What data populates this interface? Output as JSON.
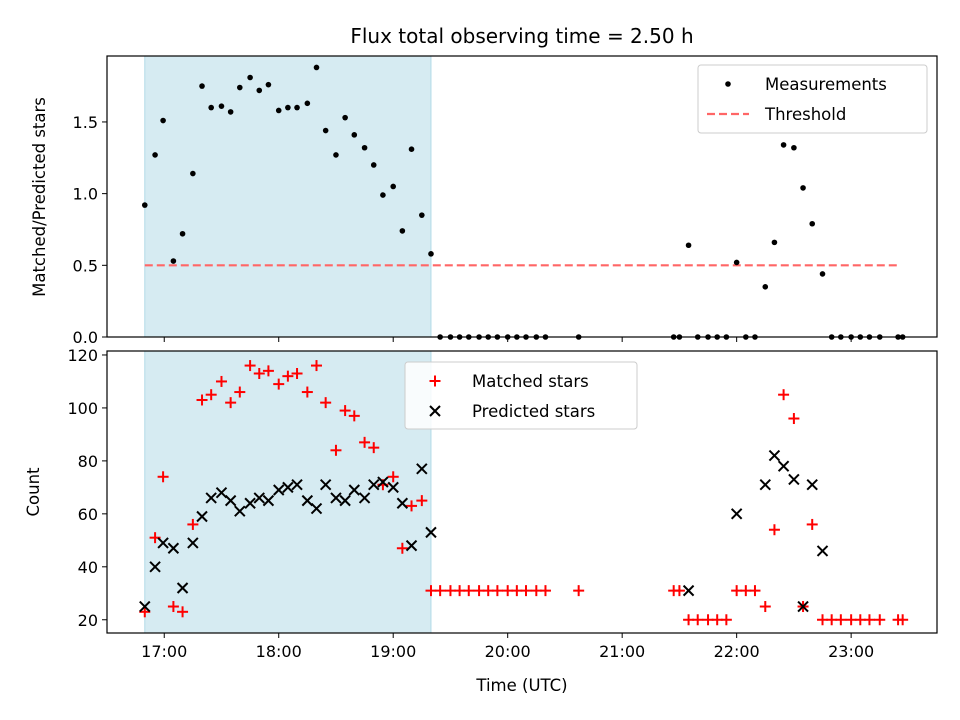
{
  "figure": {
    "title": "Flux total observing time = 2.50 h"
  },
  "chart_data": [
    {
      "type": "scatter",
      "panel": "top",
      "title": "Flux total observing time = 2.50 h",
      "xlabel": "",
      "ylabel": "Matched/Predicted stars",
      "xlim": [
        16.5,
        23.75
      ],
      "ylim": [
        0,
        1.96
      ],
      "yticks": [
        0,
        0.5,
        1.0,
        1.5
      ],
      "ytick_labels": [
        "0.0",
        "0.5",
        "1.0",
        "1.5"
      ],
      "shaded_interval": {
        "x": [
          16.83,
          19.33
        ],
        "color": "#add8e6",
        "alpha": 0.5
      },
      "series": [
        {
          "name": "Measurements",
          "marker": "dot",
          "color": "#000000",
          "points": [
            [
              16.83,
              0.92
            ],
            [
              16.92,
              1.27
            ],
            [
              16.99,
              1.51
            ],
            [
              17.08,
              0.53
            ],
            [
              17.16,
              0.72
            ],
            [
              17.25,
              1.14
            ],
            [
              17.33,
              1.75
            ],
            [
              17.41,
              1.6
            ],
            [
              17.5,
              1.61
            ],
            [
              17.58,
              1.57
            ],
            [
              17.66,
              1.74
            ],
            [
              17.75,
              1.81
            ],
            [
              17.83,
              1.72
            ],
            [
              17.91,
              1.76
            ],
            [
              18.0,
              1.58
            ],
            [
              18.08,
              1.6
            ],
            [
              18.16,
              1.6
            ],
            [
              18.25,
              1.63
            ],
            [
              18.33,
              1.88
            ],
            [
              18.41,
              1.44
            ],
            [
              18.5,
              1.27
            ],
            [
              18.58,
              1.53
            ],
            [
              18.66,
              1.41
            ],
            [
              18.75,
              1.32
            ],
            [
              18.83,
              1.2
            ],
            [
              18.91,
              0.99
            ],
            [
              19.0,
              1.05
            ],
            [
              19.08,
              0.74
            ],
            [
              19.16,
              1.31
            ],
            [
              19.25,
              0.85
            ],
            [
              19.33,
              0.58
            ],
            [
              19.41,
              0
            ],
            [
              19.5,
              0
            ],
            [
              19.58,
              0
            ],
            [
              19.66,
              0
            ],
            [
              19.75,
              0
            ],
            [
              19.83,
              0
            ],
            [
              19.91,
              0
            ],
            [
              20.0,
              0
            ],
            [
              20.08,
              0
            ],
            [
              20.16,
              0
            ],
            [
              20.25,
              0
            ],
            [
              20.33,
              0
            ],
            [
              20.62,
              0
            ],
            [
              21.45,
              0
            ],
            [
              21.5,
              0
            ],
            [
              21.58,
              0.64
            ],
            [
              21.66,
              0
            ],
            [
              21.75,
              0
            ],
            [
              21.83,
              0
            ],
            [
              21.91,
              0
            ],
            [
              22.0,
              0.52
            ],
            [
              22.08,
              0
            ],
            [
              22.16,
              0
            ],
            [
              22.25,
              0.35
            ],
            [
              22.33,
              0.66
            ],
            [
              22.41,
              1.34
            ],
            [
              22.5,
              1.32
            ],
            [
              22.58,
              1.04
            ],
            [
              22.66,
              0.79
            ],
            [
              22.75,
              0.44
            ],
            [
              22.83,
              0
            ],
            [
              22.91,
              0
            ],
            [
              23.0,
              0
            ],
            [
              23.08,
              0
            ],
            [
              23.16,
              0
            ],
            [
              23.25,
              0
            ],
            [
              23.41,
              0
            ],
            [
              23.45,
              0
            ]
          ]
        },
        {
          "name": "Threshold",
          "style": "dashed-line",
          "color": "#ff6666",
          "points": [
            [
              16.83,
              0.5
            ],
            [
              23.41,
              0.5
            ]
          ]
        }
      ],
      "legend": {
        "position": "top-right",
        "entries": [
          "Measurements",
          "Threshold"
        ]
      }
    },
    {
      "type": "scatter",
      "panel": "bottom",
      "xlabel": "Time (UTC)",
      "ylabel": "Count",
      "xlim": [
        16.5,
        23.75
      ],
      "ylim": [
        15,
        121.5
      ],
      "yticks": [
        20,
        40,
        60,
        80,
        100,
        120
      ],
      "ytick_labels": [
        "20",
        "40",
        "60",
        "80",
        "100",
        "120"
      ],
      "xticks": [
        17,
        18,
        19,
        20,
        21,
        22,
        23
      ],
      "xtick_labels": [
        "17:00",
        "18:00",
        "19:00",
        "20:00",
        "21:00",
        "22:00",
        "23:00"
      ],
      "shaded_interval": {
        "x": [
          16.83,
          19.33
        ],
        "color": "#add8e6",
        "alpha": 0.5
      },
      "series": [
        {
          "name": "Matched stars",
          "marker": "plus",
          "color": "#ff0000",
          "points": [
            [
              16.83,
              23
            ],
            [
              16.92,
              51
            ],
            [
              16.99,
              74
            ],
            [
              17.08,
              25
            ],
            [
              17.16,
              23
            ],
            [
              17.25,
              56
            ],
            [
              17.33,
              103
            ],
            [
              17.41,
              105
            ],
            [
              17.5,
              110
            ],
            [
              17.58,
              102
            ],
            [
              17.66,
              106
            ],
            [
              17.75,
              116
            ],
            [
              17.83,
              113
            ],
            [
              17.91,
              114
            ],
            [
              18.0,
              109
            ],
            [
              18.08,
              112
            ],
            [
              18.16,
              113
            ],
            [
              18.25,
              106
            ],
            [
              18.33,
              116
            ],
            [
              18.41,
              102
            ],
            [
              18.5,
              84
            ],
            [
              18.58,
              99
            ],
            [
              18.66,
              97
            ],
            [
              18.75,
              87
            ],
            [
              18.83,
              85
            ],
            [
              18.91,
              71
            ],
            [
              19.0,
              74
            ],
            [
              19.08,
              47
            ],
            [
              19.16,
              63
            ],
            [
              19.25,
              65
            ],
            [
              19.33,
              31
            ],
            [
              19.41,
              31
            ],
            [
              19.5,
              31
            ],
            [
              19.58,
              31
            ],
            [
              19.66,
              31
            ],
            [
              19.75,
              31
            ],
            [
              19.83,
              31
            ],
            [
              19.91,
              31
            ],
            [
              20.0,
              31
            ],
            [
              20.08,
              31
            ],
            [
              20.16,
              31
            ],
            [
              20.25,
              31
            ],
            [
              20.33,
              31
            ],
            [
              20.62,
              31
            ],
            [
              21.45,
              31
            ],
            [
              21.5,
              31
            ],
            [
              21.58,
              20
            ],
            [
              21.66,
              20
            ],
            [
              21.75,
              20
            ],
            [
              21.83,
              20
            ],
            [
              21.91,
              20
            ],
            [
              22.0,
              31
            ],
            [
              22.08,
              31
            ],
            [
              22.16,
              31
            ],
            [
              22.25,
              25
            ],
            [
              22.33,
              54
            ],
            [
              22.41,
              105
            ],
            [
              22.5,
              96
            ],
            [
              22.58,
              25
            ],
            [
              22.66,
              56
            ],
            [
              22.75,
              20
            ],
            [
              22.83,
              20
            ],
            [
              22.91,
              20
            ],
            [
              23.0,
              20
            ],
            [
              23.08,
              20
            ],
            [
              23.16,
              20
            ],
            [
              23.25,
              20
            ],
            [
              23.41,
              20
            ],
            [
              23.45,
              20
            ]
          ]
        },
        {
          "name": "Predicted stars",
          "marker": "x",
          "color": "#000000",
          "points": [
            [
              16.83,
              25
            ],
            [
              16.92,
              40
            ],
            [
              16.99,
              49
            ],
            [
              17.08,
              47
            ],
            [
              17.16,
              32
            ],
            [
              17.25,
              49
            ],
            [
              17.33,
              59
            ],
            [
              17.41,
              66
            ],
            [
              17.5,
              68
            ],
            [
              17.58,
              65
            ],
            [
              17.66,
              61
            ],
            [
              17.75,
              64
            ],
            [
              17.83,
              66
            ],
            [
              17.91,
              65
            ],
            [
              18.0,
              69
            ],
            [
              18.08,
              70
            ],
            [
              18.16,
              71
            ],
            [
              18.25,
              65
            ],
            [
              18.33,
              62
            ],
            [
              18.41,
              71
            ],
            [
              18.5,
              66
            ],
            [
              18.58,
              65
            ],
            [
              18.66,
              69
            ],
            [
              18.75,
              66
            ],
            [
              18.83,
              71
            ],
            [
              18.91,
              72
            ],
            [
              19.0,
              70
            ],
            [
              19.08,
              64
            ],
            [
              19.16,
              48
            ],
            [
              19.25,
              77
            ],
            [
              19.33,
              53
            ],
            [
              21.58,
              31
            ],
            [
              22.0,
              60
            ],
            [
              22.25,
              71
            ],
            [
              22.33,
              82
            ],
            [
              22.41,
              78
            ],
            [
              22.5,
              73
            ],
            [
              22.58,
              25
            ],
            [
              22.66,
              71
            ],
            [
              22.75,
              46
            ]
          ]
        }
      ],
      "legend": {
        "position": "top-center",
        "entries": [
          "Matched stars",
          "Predicted stars"
        ]
      }
    }
  ]
}
